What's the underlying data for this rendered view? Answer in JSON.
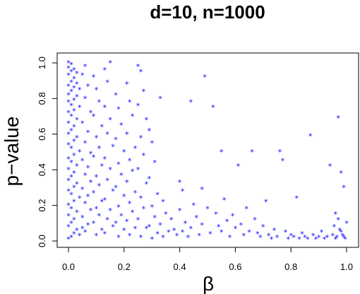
{
  "chart_data": {
    "type": "scatter",
    "title": "d=10,  n=1000",
    "xlabel": "β",
    "ylabel": "p−value",
    "xlim": [
      0,
      1
    ],
    "ylim": [
      0,
      1
    ],
    "xticks": [
      "0.0",
      "0.2",
      "0.4",
      "0.6",
      "0.8",
      "1.0"
    ],
    "yticks": [
      "0.0",
      "0.2",
      "0.4",
      "0.6",
      "0.8",
      "1.0"
    ],
    "grid": false,
    "series": [
      {
        "color": "#0000ff",
        "marker": "asterisk",
        "points": [
          [
            0.0,
            1.0
          ],
          [
            0.01,
            0.99
          ],
          [
            0.0,
            0.97
          ],
          [
            0.02,
            0.96
          ],
          [
            0.01,
            0.95
          ],
          [
            0.03,
            0.94
          ],
          [
            0.0,
            0.93
          ],
          [
            0.02,
            0.91
          ],
          [
            0.01,
            0.89
          ],
          [
            0.03,
            0.88
          ],
          [
            0.0,
            0.87
          ],
          [
            0.02,
            0.86
          ],
          [
            0.04,
            0.85
          ],
          [
            0.01,
            0.84
          ],
          [
            0.0,
            0.82
          ],
          [
            0.03,
            0.81
          ],
          [
            0.02,
            0.79
          ],
          [
            0.0,
            0.78
          ],
          [
            0.01,
            0.76
          ],
          [
            0.04,
            0.75
          ],
          [
            0.02,
            0.73
          ],
          [
            0.0,
            0.72
          ],
          [
            0.01,
            0.7
          ],
          [
            0.03,
            0.68
          ],
          [
            0.0,
            0.66
          ],
          [
            0.02,
            0.64
          ],
          [
            0.01,
            0.62
          ],
          [
            0.0,
            0.6
          ],
          [
            0.03,
            0.58
          ],
          [
            0.02,
            0.56
          ],
          [
            0.0,
            0.54
          ],
          [
            0.01,
            0.52
          ],
          [
            0.04,
            0.5
          ],
          [
            0.02,
            0.48
          ],
          [
            0.0,
            0.46
          ],
          [
            0.01,
            0.44
          ],
          [
            0.03,
            0.42
          ],
          [
            0.0,
            0.4
          ],
          [
            0.02,
            0.38
          ],
          [
            0.01,
            0.36
          ],
          [
            0.0,
            0.34
          ],
          [
            0.03,
            0.32
          ],
          [
            0.02,
            0.3
          ],
          [
            0.0,
            0.28
          ],
          [
            0.01,
            0.26
          ],
          [
            0.04,
            0.24
          ],
          [
            0.02,
            0.22
          ],
          [
            0.0,
            0.2
          ],
          [
            0.01,
            0.18
          ],
          [
            0.03,
            0.16
          ],
          [
            0.0,
            0.14
          ],
          [
            0.02,
            0.12
          ],
          [
            0.01,
            0.1
          ],
          [
            0.0,
            0.08
          ],
          [
            0.03,
            0.06
          ],
          [
            0.02,
            0.04
          ],
          [
            0.01,
            0.02
          ],
          [
            0.0,
            0.01
          ],
          [
            0.04,
            0.03
          ],
          [
            0.05,
            0.07
          ],
          [
            0.06,
            0.98
          ],
          [
            0.05,
            0.93
          ],
          [
            0.07,
            0.87
          ],
          [
            0.06,
            0.8
          ],
          [
            0.08,
            0.72
          ],
          [
            0.05,
            0.66
          ],
          [
            0.07,
            0.61
          ],
          [
            0.06,
            0.55
          ],
          [
            0.08,
            0.49
          ],
          [
            0.05,
            0.45
          ],
          [
            0.07,
            0.41
          ],
          [
            0.06,
            0.37
          ],
          [
            0.08,
            0.33
          ],
          [
            0.05,
            0.29
          ],
          [
            0.07,
            0.25
          ],
          [
            0.06,
            0.21
          ],
          [
            0.08,
            0.17
          ],
          [
            0.05,
            0.13
          ],
          [
            0.07,
            0.09
          ],
          [
            0.06,
            0.05
          ],
          [
            0.09,
            0.92
          ],
          [
            0.1,
            0.85
          ],
          [
            0.11,
            0.78
          ],
          [
            0.09,
            0.7
          ],
          [
            0.12,
            0.64
          ],
          [
            0.1,
            0.58
          ],
          [
            0.11,
            0.52
          ],
          [
            0.09,
            0.47
          ],
          [
            0.12,
            0.42
          ],
          [
            0.1,
            0.36
          ],
          [
            0.11,
            0.31
          ],
          [
            0.09,
            0.27
          ],
          [
            0.12,
            0.22
          ],
          [
            0.1,
            0.18
          ],
          [
            0.11,
            0.14
          ],
          [
            0.09,
            0.1
          ],
          [
            0.12,
            0.06
          ],
          [
            0.1,
            0.03
          ],
          [
            0.13,
            0.96
          ],
          [
            0.14,
            0.89
          ],
          [
            0.13,
            0.75
          ],
          [
            0.15,
            0.68
          ],
          [
            0.14,
            0.6
          ],
          [
            0.16,
            0.53
          ],
          [
            0.13,
            0.46
          ],
          [
            0.15,
            0.4
          ],
          [
            0.14,
            0.34
          ],
          [
            0.16,
            0.28
          ],
          [
            0.13,
            0.23
          ],
          [
            0.15,
            0.17
          ],
          [
            0.14,
            0.12
          ],
          [
            0.16,
            0.08
          ],
          [
            0.13,
            0.04
          ],
          [
            0.15,
            1.0
          ],
          [
            0.17,
            0.82
          ],
          [
            0.18,
            0.74
          ],
          [
            0.19,
            0.65
          ],
          [
            0.17,
            0.57
          ],
          [
            0.2,
            0.5
          ],
          [
            0.18,
            0.43
          ],
          [
            0.19,
            0.37
          ],
          [
            0.17,
            0.3
          ],
          [
            0.2,
            0.25
          ],
          [
            0.18,
            0.19
          ],
          [
            0.19,
            0.14
          ],
          [
            0.17,
            0.1
          ],
          [
            0.2,
            0.06
          ],
          [
            0.18,
            0.02
          ],
          [
            0.21,
            0.88
          ],
          [
            0.22,
            0.78
          ],
          [
            0.23,
            0.7
          ],
          [
            0.21,
            0.6
          ],
          [
            0.24,
            0.52
          ],
          [
            0.22,
            0.45
          ],
          [
            0.23,
            0.39
          ],
          [
            0.21,
            0.33
          ],
          [
            0.24,
            0.27
          ],
          [
            0.22,
            0.21
          ],
          [
            0.23,
            0.16
          ],
          [
            0.21,
            0.11
          ],
          [
            0.24,
            0.07
          ],
          [
            0.22,
            0.03
          ],
          [
            0.25,
            0.98
          ],
          [
            0.26,
            0.95
          ],
          [
            0.27,
            0.84
          ],
          [
            0.25,
            0.76
          ],
          [
            0.28,
            0.68
          ],
          [
            0.26,
            0.58
          ],
          [
            0.27,
            0.48
          ],
          [
            0.25,
            0.4
          ],
          [
            0.28,
            0.32
          ],
          [
            0.26,
            0.24
          ],
          [
            0.27,
            0.18
          ],
          [
            0.25,
            0.12
          ],
          [
            0.28,
            0.07
          ],
          [
            0.26,
            0.02
          ],
          [
            0.29,
            0.62
          ],
          [
            0.3,
            0.55
          ],
          [
            0.31,
            0.44
          ],
          [
            0.29,
            0.35
          ],
          [
            0.32,
            0.26
          ],
          [
            0.3,
            0.19
          ],
          [
            0.31,
            0.13
          ],
          [
            0.29,
            0.08
          ],
          [
            0.32,
            0.04
          ],
          [
            0.3,
            0.01
          ],
          [
            0.33,
            0.8
          ],
          [
            0.34,
            0.22
          ],
          [
            0.35,
            0.15
          ],
          [
            0.33,
            0.09
          ],
          [
            0.36,
            0.05
          ],
          [
            0.34,
            0.02
          ],
          [
            0.37,
            0.12
          ],
          [
            0.38,
            0.06
          ],
          [
            0.39,
            0.03
          ],
          [
            0.4,
            0.33
          ],
          [
            0.41,
            0.28
          ],
          [
            0.4,
            0.17
          ],
          [
            0.42,
            0.1
          ],
          [
            0.41,
            0.05
          ],
          [
            0.43,
            0.02
          ],
          [
            0.44,
            0.78
          ],
          [
            0.45,
            0.2
          ],
          [
            0.46,
            0.13
          ],
          [
            0.44,
            0.07
          ],
          [
            0.47,
            0.03
          ],
          [
            0.48,
            0.29
          ],
          [
            0.49,
            0.92
          ],
          [
            0.5,
            0.18
          ],
          [
            0.48,
            0.09
          ],
          [
            0.51,
            0.04
          ],
          [
            0.52,
            0.75
          ],
          [
            0.53,
            0.15
          ],
          [
            0.54,
            0.08
          ],
          [
            0.55,
            0.5
          ],
          [
            0.56,
            0.23
          ],
          [
            0.57,
            0.11
          ],
          [
            0.55,
            0.05
          ],
          [
            0.58,
            0.02
          ],
          [
            0.59,
            0.14
          ],
          [
            0.6,
            0.07
          ],
          [
            0.61,
            0.42
          ],
          [
            0.62,
            0.09
          ],
          [
            0.63,
            0.03
          ],
          [
            0.64,
            0.18
          ],
          [
            0.65,
            0.05
          ],
          [
            0.66,
            0.5
          ],
          [
            0.67,
            0.12
          ],
          [
            0.68,
            0.04
          ],
          [
            0.69,
            0.02
          ],
          [
            0.7,
            0.08
          ],
          [
            0.71,
            0.22
          ],
          [
            0.72,
            0.03
          ],
          [
            0.73,
            0.01
          ],
          [
            0.74,
            0.06
          ],
          [
            0.75,
            0.02
          ],
          [
            0.76,
            0.5
          ],
          [
            0.77,
            0.45
          ],
          [
            0.78,
            0.05
          ],
          [
            0.79,
            0.01
          ],
          [
            0.8,
            0.03
          ],
          [
            0.81,
            0.02
          ],
          [
            0.82,
            0.24
          ],
          [
            0.83,
            0.01
          ],
          [
            0.84,
            0.04
          ],
          [
            0.85,
            0.02
          ],
          [
            0.86,
            0.01
          ],
          [
            0.87,
            0.59
          ],
          [
            0.88,
            0.03
          ],
          [
            0.89,
            0.01
          ],
          [
            0.9,
            0.02
          ],
          [
            0.91,
            0.05
          ],
          [
            0.92,
            0.01
          ],
          [
            0.93,
            0.02
          ],
          [
            0.94,
            0.42
          ],
          [
            0.95,
            0.03
          ],
          [
            0.96,
            0.01
          ],
          [
            0.97,
            0.69
          ],
          [
            0.98,
            0.38
          ],
          [
            0.99,
            0.3
          ],
          [
            0.97,
            0.12
          ],
          [
            0.98,
            0.05
          ],
          [
            0.99,
            0.02
          ],
          [
            1.0,
            0.1
          ],
          [
            0.96,
            0.15
          ],
          [
            0.995,
            0.01
          ],
          [
            0.985,
            0.03
          ],
          [
            0.975,
            0.06
          ],
          [
            0.965,
            0.02
          ],
          [
            0.955,
            0.08
          ]
        ]
      }
    ]
  }
}
